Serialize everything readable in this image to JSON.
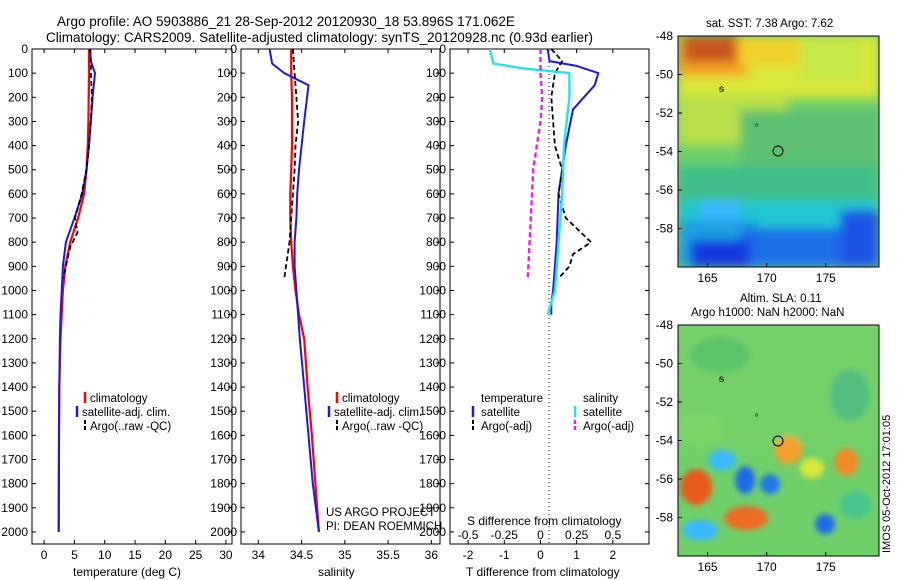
{
  "titles": {
    "line1": "Argo profile: AO 5903886_21 28-Sep-2012 20120930_18 53.896S 171.062E",
    "line2": "Climatology: CARS2009. Satellite-adjusted climatology: synTS_20120928.nc (0.93d earlier)"
  },
  "colors": {
    "climatology": "#ff0000",
    "satellite": "#1a1adc",
    "argo": "#000000",
    "sal_satellite": "#22e6e6",
    "sal_argo": "#e61ee6"
  },
  "panel_temp": {
    "xlabel": "temperature (deg C)",
    "legend": [
      "climatology",
      "satellite-adj. clim.",
      "Argo(..raw -QC)"
    ]
  },
  "panel_sal": {
    "xlabel": "salinity",
    "legend": [
      "climatology",
      "satellite-adj. clim.",
      "Argo(..raw -QC)"
    ],
    "credit1": "US ARGO PROJECT",
    "credit2": "PI: DEAN ROEMMICH"
  },
  "panel_diff": {
    "xlabel_top": "S difference from climatology",
    "xlabel_bottom": "T difference from climatology",
    "legend_t_header": "temperature",
    "legend_s_header": "salinity",
    "legend_t": [
      "satellite",
      "Argo(-adj)"
    ],
    "legend_s": [
      "satellite",
      "Argo(-adj)"
    ]
  },
  "map_sst": {
    "title": "sat. SST: 7.38 Argo: 7.62"
  },
  "map_sla": {
    "title1": "Altim. SLA: 0.11",
    "title2": "Argo h1000: NaN h2000: NaN"
  },
  "footer": {
    "stamp": "IMOS 05-Oct-2012 17:01:05"
  },
  "chart_data": [
    {
      "type": "line",
      "title": "",
      "xlabel": "temperature (deg C)",
      "ylabel": "",
      "xlim": [
        -2,
        31
      ],
      "ylim": [
        2050,
        0
      ],
      "xticks": [
        0,
        5,
        10,
        15,
        20,
        25,
        30
      ],
      "yticks": [
        0,
        100,
        200,
        300,
        400,
        500,
        600,
        700,
        800,
        900,
        1000,
        1100,
        1200,
        1300,
        1400,
        1500,
        1600,
        1700,
        1800,
        1900,
        2000
      ],
      "legend_position": "lower-middle",
      "series": [
        {
          "name": "climatology",
          "x": [
            7.4,
            7.4,
            7.35,
            7.3,
            7.2,
            7.0,
            6.6,
            5.6,
            4.3,
            3.5,
            3.1,
            2.9,
            2.7,
            2.6,
            2.5,
            2.45,
            2.4
          ],
          "y": [
            0,
            100,
            200,
            300,
            400,
            500,
            600,
            700,
            800,
            900,
            1000,
            1100,
            1200,
            1300,
            1400,
            1600,
            2000
          ]
        },
        {
          "name": "satellite-adj. clim.",
          "x": [
            7.6,
            7.7,
            8.4,
            8.0,
            7.7,
            7.4,
            7.0,
            6.3,
            5.0,
            3.6,
            3.1,
            2.9,
            2.7,
            2.6,
            2.5,
            2.45,
            2.4
          ],
          "y": [
            0,
            50,
            100,
            200,
            300,
            400,
            500,
            600,
            700,
            800,
            900,
            1000,
            1100,
            1200,
            1400,
            1600,
            2000
          ]
        },
        {
          "name": "Argo(..raw -QC)",
          "x": [
            7.6,
            7.7,
            7.7,
            7.9,
            7.7,
            7.4,
            7.0,
            6.2,
            5.1,
            5.5,
            4.3,
            3.6,
            3.2
          ],
          "y": [
            0,
            50,
            100,
            200,
            300,
            400,
            500,
            600,
            700,
            760,
            820,
            900,
            950
          ]
        }
      ]
    },
    {
      "type": "line",
      "title": "",
      "xlabel": "salinity",
      "ylabel": "",
      "xlim": [
        33.8,
        36.1
      ],
      "ylim": [
        2050,
        0
      ],
      "xticks": [
        34,
        34.5,
        35,
        35.5,
        36
      ],
      "legend_position": "lower-middle",
      "series": [
        {
          "name": "climatology",
          "x": [
            34.38,
            34.38,
            34.39,
            34.39,
            34.39,
            34.38,
            34.37,
            34.37,
            34.38,
            34.4,
            34.43,
            34.47,
            34.53,
            34.57,
            34.62,
            34.66,
            34.7
          ],
          "y": [
            0,
            100,
            200,
            300,
            400,
            500,
            600,
            700,
            800,
            900,
            1000,
            1100,
            1200,
            1400,
            1600,
            1800,
            2000
          ]
        },
        {
          "name": "satellite-adj. clim.",
          "x": [
            34.13,
            34.16,
            34.3,
            34.58,
            34.53,
            34.5,
            34.47,
            34.45,
            34.44,
            34.42,
            34.42,
            34.44,
            34.46,
            34.48,
            34.53,
            34.58,
            34.63,
            34.7
          ],
          "y": [
            0,
            60,
            100,
            150,
            300,
            400,
            500,
            600,
            700,
            800,
            900,
            1000,
            1100,
            1200,
            1400,
            1600,
            1800,
            2000
          ]
        },
        {
          "name": "Argo(..raw -QC)",
          "x": [
            34.4,
            34.42,
            34.44,
            34.46,
            34.43,
            34.42,
            34.4,
            34.38,
            34.36,
            34.32,
            34.3
          ],
          "y": [
            0,
            100,
            200,
            300,
            400,
            500,
            600,
            700,
            800,
            900,
            950
          ]
        }
      ]
    },
    {
      "type": "line",
      "title": "",
      "xlabel": "T difference from climatology",
      "ylabel": "",
      "xlim": [
        -2.5,
        3
      ],
      "ylim": [
        2050,
        0
      ],
      "xticks": [
        -2,
        -1,
        0,
        1,
        2
      ],
      "secondary_xlabel": "S difference from climatology",
      "secondary_xticks": [
        -0.5,
        -0.25,
        0,
        0.25,
        0.5
      ],
      "legend_position": "lower-middle",
      "series": [
        {
          "name": "temperature satellite",
          "x": [
            0.2,
            0.25,
            1.0,
            1.6,
            1.5,
            0.9,
            0.7,
            0.5,
            0.45,
            0.4,
            0.35,
            0.3,
            0.3
          ],
          "y": [
            0,
            50,
            70,
            100,
            150,
            250,
            400,
            600,
            800,
            900,
            1000,
            1050,
            1100
          ]
        },
        {
          "name": "temperature Argo(-adj)",
          "x": [
            0.3,
            0.6,
            0.4,
            0.3,
            0.35,
            0.4,
            0.6,
            0.5,
            0.7,
            1.4,
            0.9,
            0.8,
            0.5
          ],
          "y": [
            0,
            50,
            100,
            200,
            300,
            400,
            500,
            600,
            700,
            800,
            850,
            900,
            950
          ]
        },
        {
          "name": "salinity satellite",
          "x": [
            -1.4,
            -1.3,
            -0.5,
            0.8,
            0.8,
            0.65,
            0.6,
            0.5,
            0.4,
            0.2
          ],
          "y": [
            0,
            60,
            80,
            100,
            200,
            400,
            600,
            800,
            1000,
            1100
          ]
        },
        {
          "name": "salinity Argo(-adj)",
          "x": [
            0.0,
            0.0,
            0.05,
            0.0,
            -0.1,
            -0.2,
            -0.25,
            -0.3,
            -0.35
          ],
          "y": [
            0,
            100,
            200,
            300,
            400,
            500,
            650,
            800,
            950
          ]
        }
      ]
    },
    {
      "type": "heatmap",
      "title": "sat. SST: 7.38 Argo: 7.62",
      "xlim": [
        162.5,
        179.5
      ],
      "ylim": [
        -60,
        -48
      ],
      "xticks": [
        165,
        170,
        175
      ],
      "yticks": [
        -48,
        -50,
        -52,
        -54,
        -56,
        -58
      ],
      "marker": {
        "lon": 171.06,
        "lat": -53.9
      }
    },
    {
      "type": "heatmap",
      "title": "Altim. SLA: 0.11",
      "xlim": [
        162.5,
        179.5
      ],
      "ylim": [
        -60,
        -48
      ],
      "xticks": [
        165,
        170,
        175
      ],
      "yticks": [
        -48,
        -50,
        -52,
        -54,
        -56,
        -58
      ],
      "marker": {
        "lon": 171.06,
        "lat": -53.9
      }
    }
  ]
}
